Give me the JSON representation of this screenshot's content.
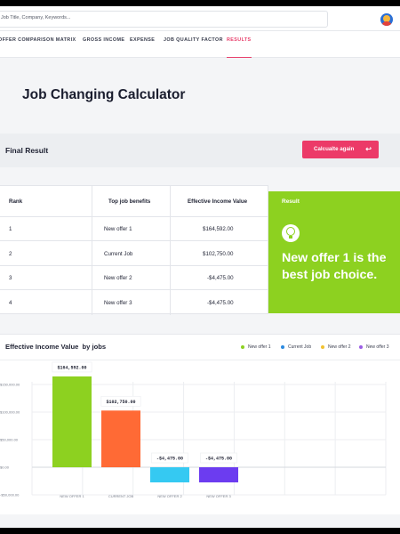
{
  "search": {
    "placeholder": "Job Title, Company, Keywords..."
  },
  "tabs": [
    {
      "label": "Offer Comparison Matrix"
    },
    {
      "label": "Gross Income"
    },
    {
      "label": "Expense"
    },
    {
      "label": "Job Quality Factor"
    },
    {
      "label": "Results"
    }
  ],
  "page_title": "Job Changing Calculator",
  "final_result": {
    "label": "Final Result",
    "button_label": "Calcualte again",
    "button_icon": "undo-icon"
  },
  "table": {
    "headers": [
      "Rank",
      "Top job benefits",
      "Effective Income Value"
    ],
    "rows": [
      {
        "rank": "1",
        "benefit": "New offer 1",
        "value": "$164,592.00"
      },
      {
        "rank": "2",
        "benefit": "Current Job",
        "value": "$102,750.00"
      },
      {
        "rank": "3",
        "benefit": "New offer 2",
        "value": "-$4,475.00"
      },
      {
        "rank": "4",
        "benefit": "New offer 3",
        "value": "-$4,475.00"
      }
    ]
  },
  "result_card": {
    "label": "Result",
    "icon": "lightbulb-icon",
    "message": "New offer 1 is the best job choice.",
    "color": "#8dd120"
  },
  "chart_title": "Effective Income Value  by jobs",
  "chart_data": {
    "type": "bar",
    "categories": [
      "NEW OFFER 1",
      "CURRENT JOB",
      "NEW OFFER 2",
      "NEW OFFER 3"
    ],
    "values": [
      164592,
      102750,
      -4475,
      -4475
    ],
    "value_labels": [
      "$164,592.00",
      "$102,750.00",
      "-$4,475.00",
      "-$4,475.00"
    ],
    "colors": [
      "#8dd120",
      "#ff6a35",
      "#35c9f2",
      "#6c3cf0"
    ],
    "ytick_values": [
      150000,
      100000,
      50000,
      0,
      -50000
    ],
    "ytick_labels": [
      "$150,000.00",
      "$100,000.00",
      "$50,000.00",
      "$0.00",
      "-$50,000.00"
    ],
    "ylim": [
      -50000,
      150000
    ],
    "legend": [
      {
        "name": "New offer 1",
        "color": "#8dd120"
      },
      {
        "name": "Current Job",
        "color": "#2b8ae0"
      },
      {
        "name": "New offer 2",
        "color": "#f2c230"
      },
      {
        "name": "New offer 3",
        "color": "#9b5de5"
      }
    ],
    "grid": true,
    "legend_position": "top-right"
  }
}
